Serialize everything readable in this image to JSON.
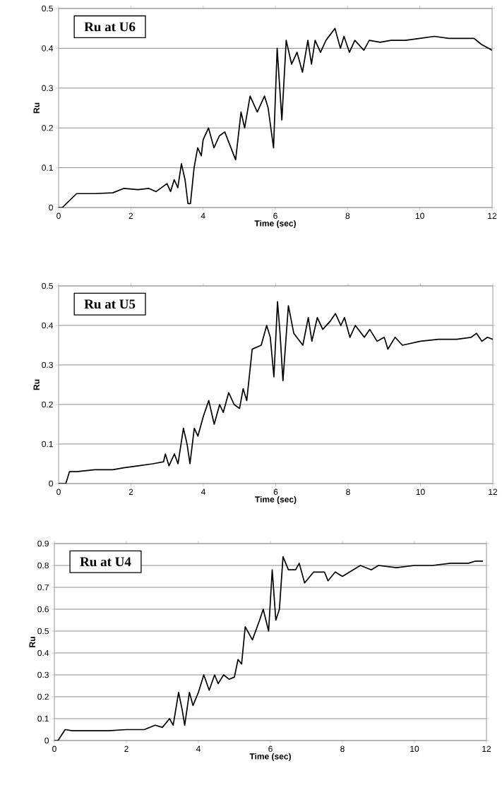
{
  "chart_data": [
    {
      "type": "line",
      "title": "Ru at U6",
      "xlabel": "Time (sec)",
      "ylabel": "Ru",
      "color": "#000000",
      "grid": "y",
      "xlim": [
        0,
        12
      ],
      "ylim": [
        0,
        0.5
      ],
      "xticks": [
        0,
        2,
        4,
        6,
        8,
        10,
        12
      ],
      "yticks": [
        0,
        0.1,
        0.2,
        0.3,
        0.4,
        0.5
      ],
      "x": [
        0,
        0.1,
        0.5,
        1.0,
        1.5,
        1.8,
        2.2,
        2.5,
        2.7,
        3.0,
        3.1,
        3.2,
        3.3,
        3.4,
        3.5,
        3.58,
        3.65,
        3.75,
        3.85,
        3.95,
        4.0,
        4.15,
        4.3,
        4.45,
        4.6,
        4.9,
        5.05,
        5.15,
        5.3,
        5.5,
        5.7,
        5.8,
        5.95,
        6.05,
        6.1,
        6.18,
        6.3,
        6.45,
        6.6,
        6.75,
        6.9,
        7.0,
        7.1,
        7.25,
        7.4,
        7.65,
        7.8,
        7.9,
        8.05,
        8.2,
        8.45,
        8.6,
        8.9,
        9.2,
        9.6,
        10.0,
        10.4,
        10.8,
        11.1,
        11.5,
        11.7,
        11.9,
        12.0
      ],
      "values": [
        0,
        0,
        0.035,
        0.035,
        0.037,
        0.048,
        0.045,
        0.048,
        0.04,
        0.06,
        0.04,
        0.07,
        0.05,
        0.11,
        0.07,
        0.01,
        0.01,
        0.1,
        0.15,
        0.13,
        0.17,
        0.2,
        0.15,
        0.18,
        0.19,
        0.12,
        0.24,
        0.2,
        0.28,
        0.24,
        0.28,
        0.25,
        0.15,
        0.4,
        0.33,
        0.22,
        0.42,
        0.36,
        0.39,
        0.34,
        0.42,
        0.36,
        0.42,
        0.39,
        0.42,
        0.45,
        0.4,
        0.43,
        0.39,
        0.42,
        0.395,
        0.42,
        0.415,
        0.42,
        0.42,
        0.425,
        0.43,
        0.425,
        0.425,
        0.425,
        0.41,
        0.4,
        0.395
      ]
    },
    {
      "type": "line",
      "title": "Ru at U5",
      "xlabel": "Time (sec)",
      "ylabel": "Ru",
      "color": "#000000",
      "grid": "y",
      "xlim": [
        0,
        12
      ],
      "ylim": [
        0,
        0.5
      ],
      "xticks": [
        0,
        2,
        4,
        6,
        8,
        10,
        12
      ],
      "yticks": [
        0,
        0.1,
        0.2,
        0.3,
        0.4,
        0.5
      ],
      "x": [
        0,
        0.2,
        0.3,
        0.5,
        1.0,
        1.5,
        1.8,
        2.2,
        2.6,
        2.9,
        2.95,
        3.05,
        3.2,
        3.3,
        3.45,
        3.55,
        3.63,
        3.75,
        3.85,
        4.0,
        4.15,
        4.3,
        4.45,
        4.55,
        4.7,
        4.85,
        5.0,
        5.1,
        5.2,
        5.35,
        5.6,
        5.75,
        5.85,
        5.95,
        6.05,
        6.12,
        6.2,
        6.35,
        6.5,
        6.75,
        6.9,
        7.0,
        7.15,
        7.3,
        7.5,
        7.65,
        7.8,
        7.9,
        8.05,
        8.2,
        8.45,
        8.6,
        8.8,
        9.0,
        9.1,
        9.3,
        9.5,
        10.0,
        10.5,
        11.0,
        11.4,
        11.55,
        11.7,
        11.85,
        12.0
      ],
      "values": [
        0,
        0,
        0.03,
        0.03,
        0.035,
        0.035,
        0.04,
        0.045,
        0.05,
        0.055,
        0.075,
        0.045,
        0.075,
        0.05,
        0.14,
        0.1,
        0.05,
        0.14,
        0.12,
        0.17,
        0.21,
        0.15,
        0.2,
        0.18,
        0.23,
        0.2,
        0.19,
        0.24,
        0.21,
        0.34,
        0.35,
        0.4,
        0.37,
        0.27,
        0.46,
        0.38,
        0.26,
        0.45,
        0.38,
        0.35,
        0.42,
        0.36,
        0.42,
        0.39,
        0.41,
        0.43,
        0.4,
        0.42,
        0.37,
        0.4,
        0.37,
        0.39,
        0.36,
        0.37,
        0.34,
        0.37,
        0.35,
        0.36,
        0.365,
        0.365,
        0.37,
        0.38,
        0.36,
        0.37,
        0.365
      ]
    },
    {
      "type": "line",
      "title": "Ru at U4",
      "xlabel": "Time (sec)",
      "ylabel": "Ru",
      "color": "#000000",
      "grid": "y",
      "xlim": [
        0,
        12
      ],
      "ylim": [
        0,
        0.9
      ],
      "xticks": [
        0,
        2,
        4,
        6,
        8,
        10,
        12
      ],
      "yticks": [
        0,
        0.1,
        0.2,
        0.3,
        0.4,
        0.5,
        0.6,
        0.7,
        0.8,
        0.9
      ],
      "x": [
        0,
        0.1,
        0.3,
        0.5,
        1.0,
        1.5,
        2.0,
        2.5,
        2.8,
        3.0,
        3.2,
        3.3,
        3.45,
        3.55,
        3.62,
        3.75,
        3.85,
        4.0,
        4.15,
        4.3,
        4.45,
        4.55,
        4.7,
        4.85,
        5.0,
        5.1,
        5.2,
        5.3,
        5.5,
        5.7,
        5.8,
        5.95,
        6.05,
        6.15,
        6.25,
        6.35,
        6.5,
        6.7,
        6.8,
        6.95,
        7.2,
        7.5,
        7.6,
        7.8,
        8.0,
        8.2,
        8.5,
        8.8,
        9.0,
        9.5,
        10.0,
        10.5,
        11.0,
        11.5,
        11.7,
        11.9
      ],
      "values": [
        0,
        0,
        0.05,
        0.045,
        0.045,
        0.045,
        0.05,
        0.05,
        0.07,
        0.06,
        0.1,
        0.07,
        0.22,
        0.14,
        0.07,
        0.22,
        0.16,
        0.22,
        0.3,
        0.23,
        0.3,
        0.26,
        0.3,
        0.28,
        0.29,
        0.37,
        0.35,
        0.52,
        0.46,
        0.55,
        0.6,
        0.5,
        0.78,
        0.55,
        0.6,
        0.84,
        0.78,
        0.78,
        0.81,
        0.72,
        0.77,
        0.77,
        0.73,
        0.77,
        0.75,
        0.77,
        0.8,
        0.78,
        0.8,
        0.79,
        0.8,
        0.8,
        0.81,
        0.81,
        0.82,
        0.82
      ]
    }
  ]
}
